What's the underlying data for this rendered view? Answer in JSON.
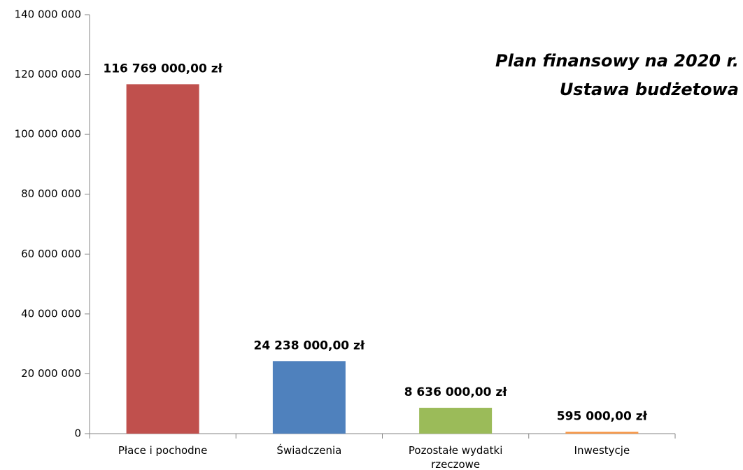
{
  "chart_data": {
    "type": "bar",
    "title": "Plan finansowy na 2020 r.",
    "subtitle": "Ustawa budżetowa",
    "categories": [
      "Płace i pochodne",
      "Świadczenia",
      "Pozostałe wydatki rzeczowe",
      "Inwestycje"
    ],
    "values": [
      116769000,
      24238000,
      8636000,
      595000
    ],
    "value_labels": [
      "116 769 000,00 zł",
      "24 238 000,00 zł",
      "8 636 000,00 zł",
      "595 000,00 zł"
    ],
    "colors": [
      "#c0504d",
      "#4f81bd",
      "#9bbb59",
      "#f79646"
    ],
    "ylim": [
      0,
      140000000
    ],
    "yticks": [
      {
        "value": 0,
        "label": "0"
      },
      {
        "value": 20000000,
        "label": "20 000 000"
      },
      {
        "value": 40000000,
        "label": "40 000 000"
      },
      {
        "value": 60000000,
        "label": "60 000 000"
      },
      {
        "value": 80000000,
        "label": "80 000 000"
      },
      {
        "value": 100000000,
        "label": "100 000 000"
      },
      {
        "value": 120000000,
        "label": "120 000 000"
      },
      {
        "value": 140000000,
        "label": "140 000 000"
      }
    ],
    "grid": false
  }
}
